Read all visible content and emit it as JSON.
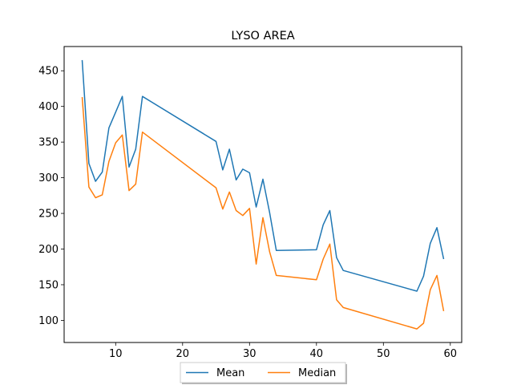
{
  "chart_data": {
    "type": "line",
    "title": "LYSO AREA",
    "xlabel": "",
    "ylabel": "",
    "xlim": [
      2.3,
      61.7
    ],
    "ylim": [
      69,
      484
    ],
    "xticks": [
      10,
      20,
      30,
      40,
      50,
      60
    ],
    "xtick_labels": [
      "10",
      "20",
      "30",
      "40",
      "50",
      "60"
    ],
    "yticks": [
      100,
      150,
      200,
      250,
      300,
      350,
      400,
      450
    ],
    "ytick_labels": [
      "100",
      "150",
      "200",
      "250",
      "300",
      "350",
      "400",
      "450"
    ],
    "grid": false,
    "legend_position": "bottom-center, below plot",
    "x": [
      5,
      6,
      7,
      8,
      9,
      10,
      11,
      12,
      13,
      14,
      25,
      26,
      27,
      28,
      29,
      30,
      31,
      32,
      33,
      34,
      40,
      41,
      42,
      43,
      44,
      55,
      56,
      57,
      58,
      59
    ],
    "series": [
      {
        "name": "Mean",
        "color": "#1f77b4",
        "values": [
          465,
          320,
          295,
          308,
          370,
          392,
          414,
          315,
          340,
          414,
          351,
          311,
          340,
          297,
          312,
          307,
          259,
          298,
          251,
          198,
          199,
          234,
          254,
          188,
          170,
          141,
          162,
          208,
          230,
          186
        ]
      },
      {
        "name": "Median",
        "color": "#ff7f0e",
        "values": [
          413,
          287,
          272,
          276,
          323,
          349,
          360,
          282,
          291,
          364,
          286,
          256,
          280,
          254,
          247,
          257,
          179,
          244,
          196,
          163,
          157,
          186,
          207,
          129,
          118,
          88,
          96,
          143,
          163,
          113
        ]
      }
    ]
  }
}
